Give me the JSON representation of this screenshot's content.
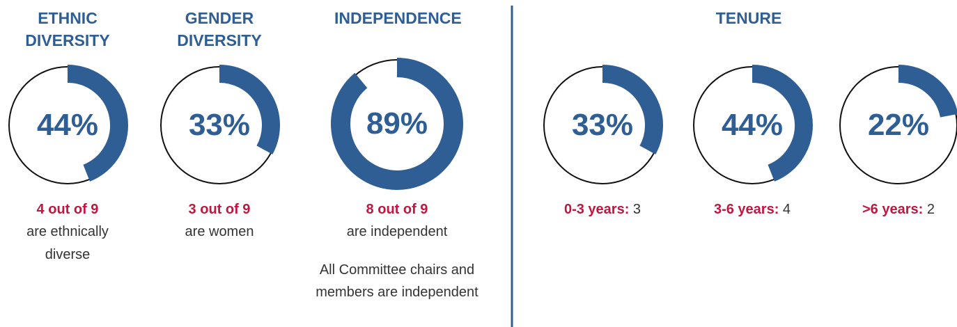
{
  "headers": {
    "tenure": "TENURE"
  },
  "chart_data": [
    {
      "type": "donut",
      "title": "ETHNIC DIVERSITY",
      "values": [
        44
      ],
      "value_labels": [
        "44%"
      ],
      "color": "#2e5e94",
      "caption_label": "4 out of 9",
      "caption_text": "are ethnically diverse"
    },
    {
      "type": "donut",
      "title": "GENDER DIVERSITY",
      "values": [
        33
      ],
      "value_labels": [
        "33%"
      ],
      "color": "#2e5e94",
      "caption_label": "3 out of 9",
      "caption_text": "are women"
    },
    {
      "type": "donut",
      "title": "INDEPENDENCE",
      "values": [
        89
      ],
      "value_labels": [
        "89%"
      ],
      "color": "#2e5e94",
      "caption_label": "8 out of 9",
      "caption_text": "are independent",
      "note": "All Committee chairs and members are independent"
    },
    {
      "type": "donut",
      "values": [
        33
      ],
      "value_labels": [
        "33%"
      ],
      "color": "#2e5e94",
      "caption_label": "0-3 years:",
      "caption_value": 3
    },
    {
      "type": "donut",
      "values": [
        44
      ],
      "value_labels": [
        "44%"
      ],
      "color": "#2e5e94",
      "caption_label": "3-6 years:",
      "caption_value": 4
    },
    {
      "type": "donut",
      "values": [
        22
      ],
      "value_labels": [
        "22%"
      ],
      "color": "#2e5e94",
      "caption_label": ">6 years:",
      "caption_value": 2
    }
  ]
}
